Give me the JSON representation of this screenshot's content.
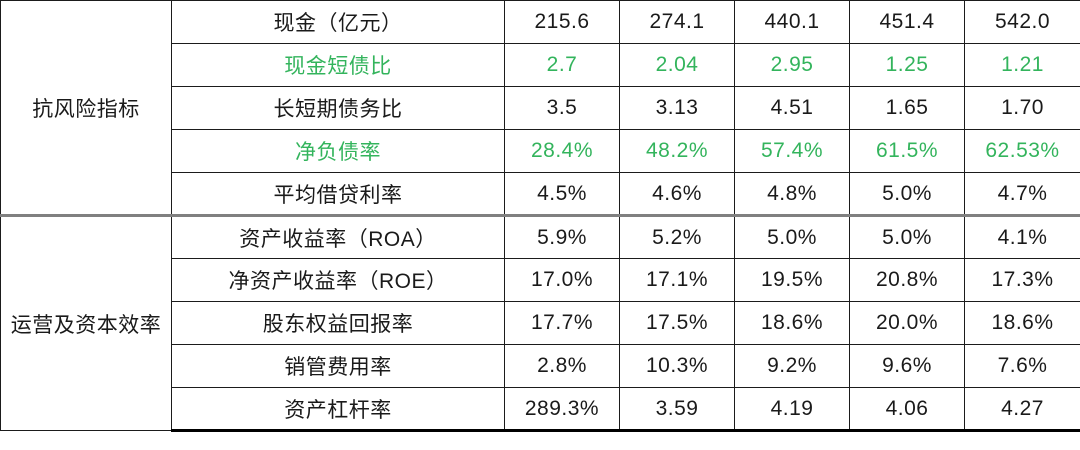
{
  "colors": {
    "green_text": "#33b45c",
    "text": "#1a1a1a",
    "inner_border": "#1b1b1b",
    "section_divider": "#808080",
    "outer_bottom_border": "#000000",
    "background": "#ffffff"
  },
  "chart_data": {
    "type": "table",
    "grid": "on",
    "column_count": 7,
    "value_column_count": 5,
    "sections": [
      {
        "category": "抗风险指标",
        "rows": [
          {
            "label": "现金（亿元）",
            "highlight": false,
            "values": [
              "215.6",
              "274.1",
              "440.1",
              "451.4",
              "542.0"
            ]
          },
          {
            "label": "现金短债比",
            "highlight": true,
            "values": [
              "2.7",
              "2.04",
              "2.95",
              "1.25",
              "1.21"
            ]
          },
          {
            "label": "长短期债务比",
            "highlight": false,
            "values": [
              "3.5",
              "3.13",
              "4.51",
              "1.65",
              "1.70"
            ]
          },
          {
            "label": "净负债率",
            "highlight": true,
            "values": [
              "28.4%",
              "48.2%",
              "57.4%",
              "61.5%",
              "62.53%"
            ]
          },
          {
            "label": "平均借贷利率",
            "highlight": false,
            "values": [
              "4.5%",
              "4.6%",
              "4.8%",
              "5.0%",
              "4.7%"
            ]
          }
        ]
      },
      {
        "category": "运营及资本效率",
        "rows": [
          {
            "label": "资产收益率（ROA）",
            "highlight": false,
            "values": [
              "5.9%",
              "5.2%",
              "5.0%",
              "5.0%",
              "4.1%"
            ]
          },
          {
            "label": "净资产收益率（ROE）",
            "highlight": false,
            "values": [
              "17.0%",
              "17.1%",
              "19.5%",
              "20.8%",
              "17.3%"
            ]
          },
          {
            "label": "股东权益回报率",
            "highlight": false,
            "values": [
              "17.7%",
              "17.5%",
              "18.6%",
              "20.0%",
              "18.6%"
            ]
          },
          {
            "label": "销管费用率",
            "highlight": false,
            "values": [
              "2.8%",
              "10.3%",
              "9.2%",
              "9.6%",
              "7.6%"
            ]
          },
          {
            "label": "资产杠杆率",
            "highlight": false,
            "values": [
              "289.3%",
              "3.59",
              "4.19",
              "4.06",
              "4.27"
            ]
          }
        ]
      }
    ]
  }
}
